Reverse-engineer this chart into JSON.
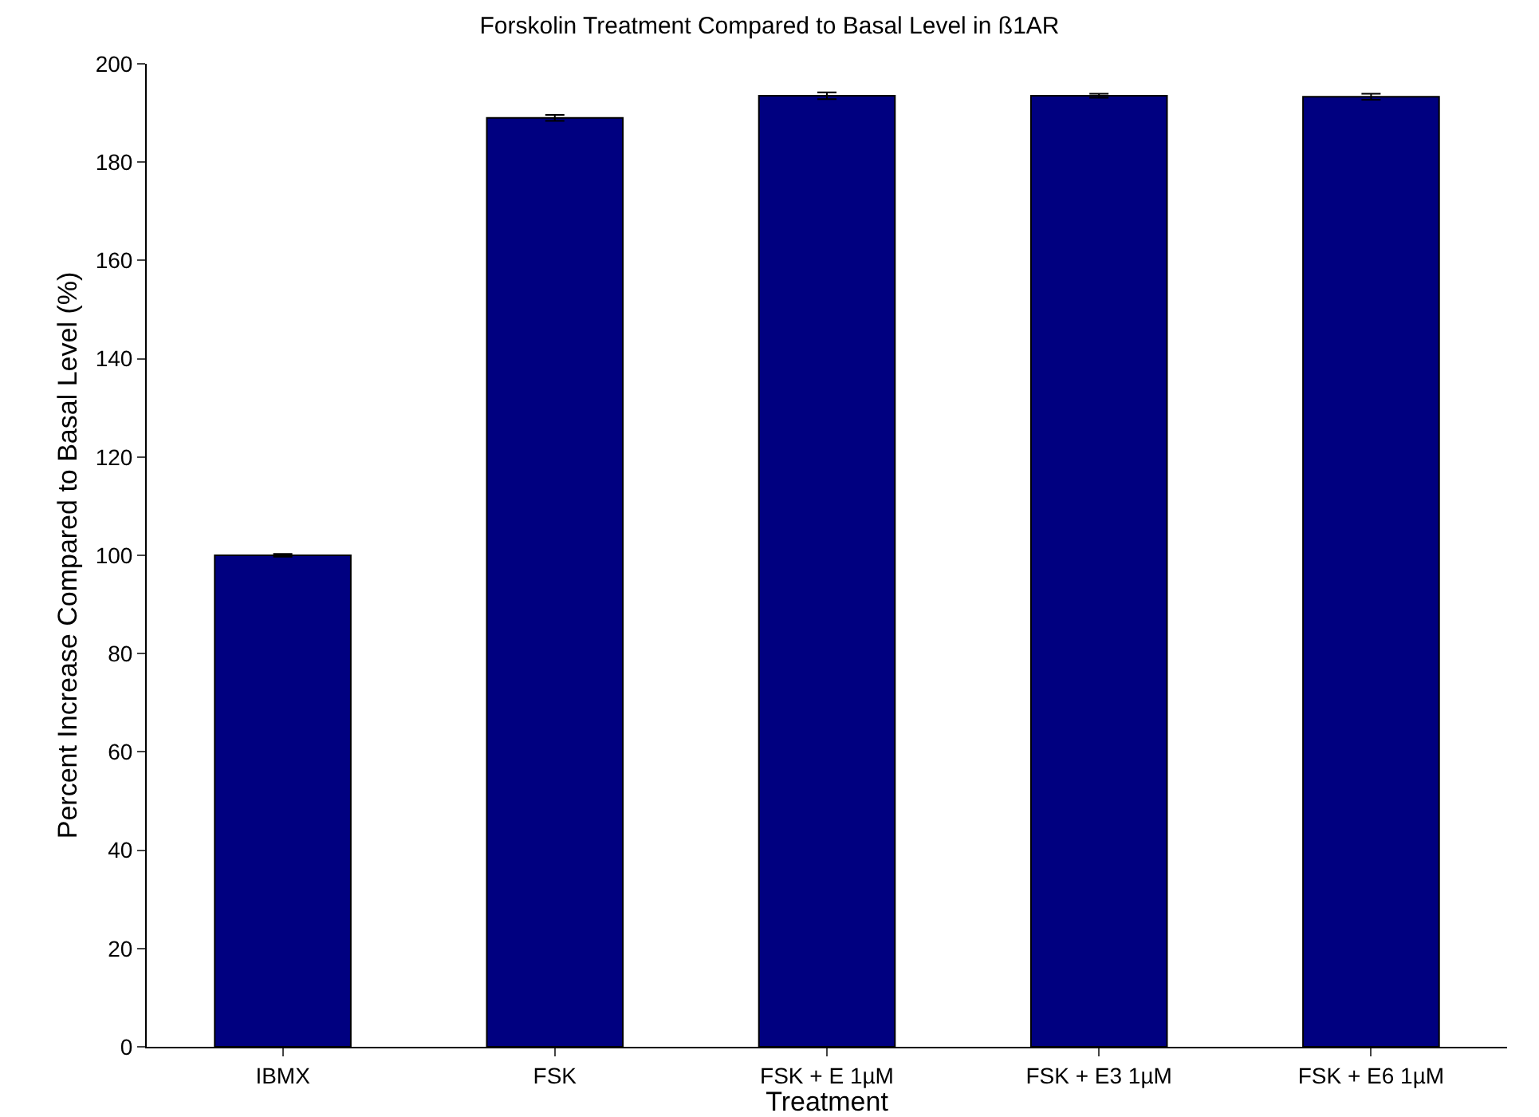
{
  "chart_data": {
    "type": "bar",
    "title": "Forskolin Treatment Compared to Basal Level in ß1AR",
    "xlabel": "Treatment",
    "ylabel": "Percent Increase Compared to Basal Level (%)",
    "categories": [
      "IBMX",
      "FSK",
      "FSK + E 1µM",
      "FSK + E3 1µM",
      "FSK + E6 1µM"
    ],
    "values": [
      100,
      189,
      193.5,
      193.5,
      193.3
    ],
    "errors": [
      0.3,
      0.6,
      0.7,
      0.4,
      0.6
    ],
    "color": "#000080",
    "ylim": [
      0,
      200
    ],
    "yticks": [
      0,
      20,
      40,
      60,
      80,
      100,
      120,
      140,
      160,
      180,
      200
    ],
    "grid": false
  }
}
